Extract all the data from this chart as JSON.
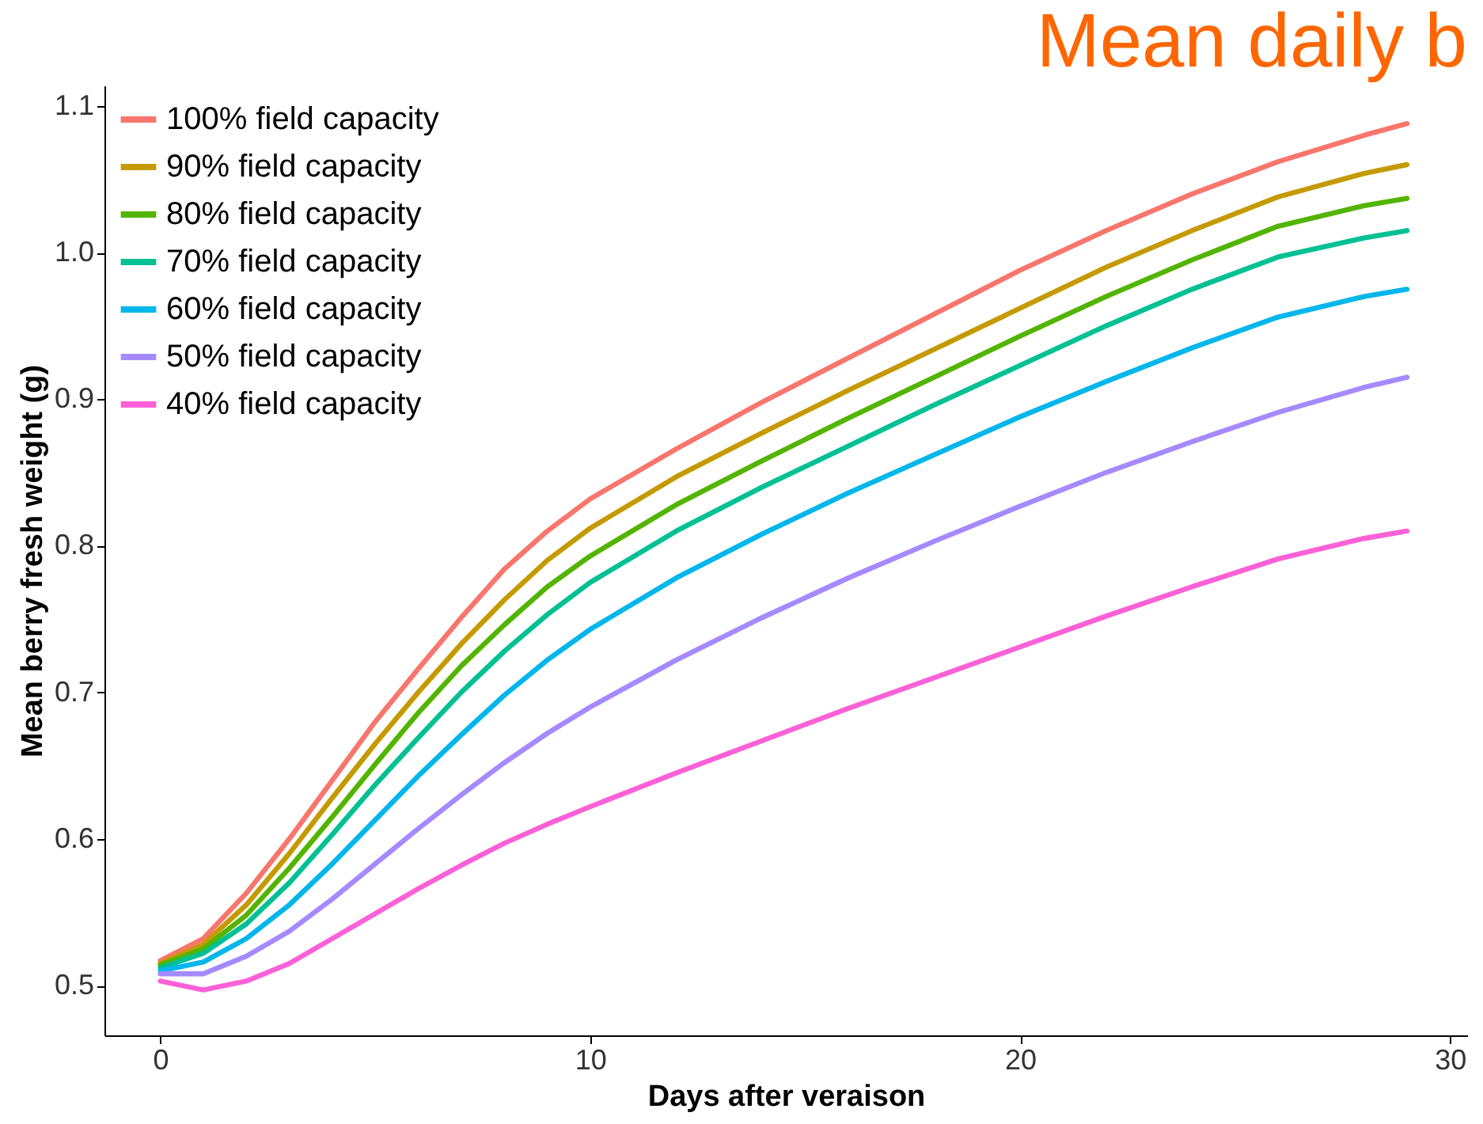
{
  "chart_data": {
    "type": "line",
    "title": "Mean daily b",
    "xlabel": "Days after veraison",
    "ylabel": "Mean berry fresh weight (g)",
    "x": [
      0,
      1,
      2,
      3,
      4,
      5,
      6,
      7,
      8,
      9,
      10,
      12,
      14,
      16,
      18,
      20,
      22,
      24,
      26,
      28,
      29
    ],
    "xlim": [
      -1.3,
      30.4
    ],
    "xticks": [
      0,
      10,
      20,
      30
    ],
    "ylim": [
      0.466,
      1.114
    ],
    "yticks": [
      0.5,
      0.6,
      0.7,
      0.8,
      0.9,
      {
        "value": 1,
        "label": "1.0"
      },
      1.1
    ],
    "grid": false,
    "legend": "top left",
    "line_style": "solid",
    "marker": "none",
    "series": [
      {
        "name": "100% field capacity",
        "color": "#f8766d",
        "values": [
          0.517,
          0.532,
          0.563,
          0.6,
          0.64,
          0.68,
          0.716,
          0.751,
          0.784,
          0.81,
          0.832,
          0.866,
          0.898,
          0.928,
          0.958,
          0.988,
          1.015,
          1.04,
          1.062,
          1.08,
          1.088
        ]
      },
      {
        "name": "90% field capacity",
        "color": "#c49a00",
        "values": [
          0.515,
          0.528,
          0.555,
          0.59,
          0.628,
          0.665,
          0.7,
          0.733,
          0.763,
          0.79,
          0.812,
          0.847,
          0.877,
          0.906,
          0.934,
          0.962,
          0.99,
          1.015,
          1.038,
          1.054,
          1.06
        ]
      },
      {
        "name": "80% field capacity",
        "color": "#53b400",
        "values": [
          0.514,
          0.525,
          0.548,
          0.58,
          0.615,
          0.651,
          0.686,
          0.718,
          0.746,
          0.772,
          0.793,
          0.828,
          0.858,
          0.887,
          0.915,
          0.943,
          0.97,
          0.995,
          1.018,
          1.032,
          1.037
        ]
      },
      {
        "name": "70% field capacity",
        "color": "#00c094",
        "values": [
          0.512,
          0.522,
          0.542,
          0.57,
          0.603,
          0.637,
          0.669,
          0.7,
          0.728,
          0.753,
          0.775,
          0.81,
          0.84,
          0.868,
          0.896,
          0.923,
          0.95,
          0.975,
          0.997,
          1.01,
          1.015
        ]
      },
      {
        "name": "60% field capacity",
        "color": "#00b6eb",
        "values": [
          0.51,
          0.516,
          0.532,
          0.555,
          0.583,
          0.613,
          0.643,
          0.671,
          0.698,
          0.722,
          0.743,
          0.778,
          0.808,
          0.836,
          0.862,
          0.888,
          0.912,
          0.935,
          0.956,
          0.97,
          0.975
        ]
      },
      {
        "name": "50% field capacity",
        "color": "#a58aff",
        "values": [
          0.508,
          0.508,
          0.52,
          0.537,
          0.559,
          0.583,
          0.607,
          0.63,
          0.652,
          0.672,
          0.69,
          0.722,
          0.751,
          0.778,
          0.803,
          0.827,
          0.85,
          0.871,
          0.891,
          0.908,
          0.915
        ]
      },
      {
        "name": "40% field capacity",
        "color": "#fb61d7",
        "values": [
          0.503,
          0.497,
          0.503,
          0.515,
          0.532,
          0.549,
          0.566,
          0.582,
          0.597,
          0.61,
          0.622,
          0.645,
          0.667,
          0.689,
          0.71,
          0.731,
          0.752,
          0.772,
          0.791,
          0.805,
          0.81
        ]
      }
    ]
  }
}
